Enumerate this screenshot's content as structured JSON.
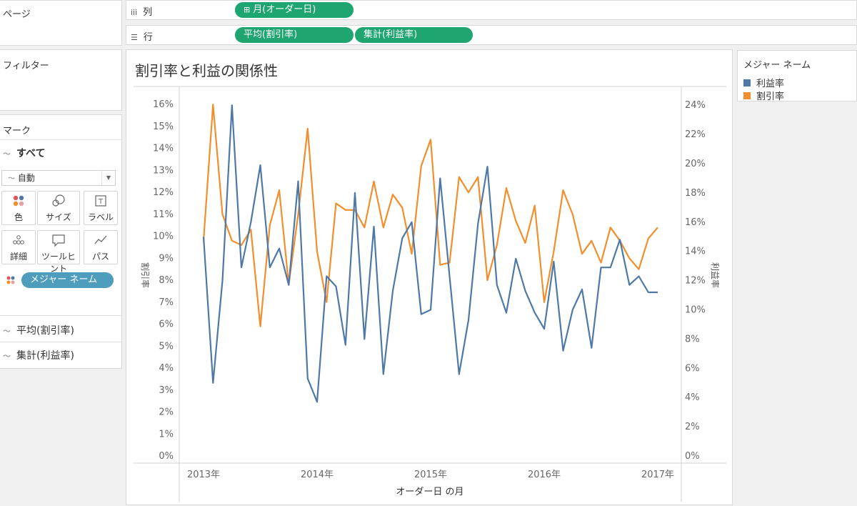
{
  "panels": {
    "pages_title": "ページ",
    "filters_title": "フィルター",
    "marks_title": "マーク"
  },
  "shelves": {
    "columns": {
      "label": "列",
      "icon": "columns-icon",
      "pills": [
        "月(オーダー日)"
      ],
      "pill_icon": "⊞"
    },
    "rows": {
      "label": "行",
      "icon": "rows-icon",
      "pills": [
        "平均(割引率)",
        "集計(利益率)"
      ]
    }
  },
  "marks": {
    "all_label": "すべて",
    "mark_type": "自動",
    "buttons": [
      {
        "label": "色",
        "icon": "color-icon"
      },
      {
        "label": "サイズ",
        "icon": "size-icon"
      },
      {
        "label": "ラベル",
        "icon": "label-icon"
      },
      {
        "label": "詳細",
        "icon": "detail-icon"
      },
      {
        "label": "ツールヒント",
        "icon": "tooltip-icon"
      },
      {
        "label": "パス",
        "icon": "path-icon"
      }
    ],
    "color_pill": "メジャー ネーム",
    "cards": [
      "平均(割引率)",
      "集計(利益率)"
    ]
  },
  "legend": {
    "title": "メジャー ネーム",
    "items": [
      {
        "label": "利益率",
        "color": "#4e79a7"
      },
      {
        "label": "割引率",
        "color": "#f28e2b"
      }
    ]
  },
  "chart_data": {
    "type": "line",
    "title": "割引率と利益の関係性",
    "xlabel": "オーダー日 の月",
    "ylabel_left": "割引率",
    "ylabel_right": "利益率",
    "x_ticks": [
      "2013年",
      "2014年",
      "2015年",
      "2016年",
      "2017年"
    ],
    "y_left_ticks": [
      "0%",
      "1%",
      "2%",
      "3%",
      "4%",
      "5%",
      "6%",
      "7%",
      "8%",
      "9%",
      "10%",
      "11%",
      "12%",
      "13%",
      "14%",
      "15%",
      "16%"
    ],
    "y_right_ticks": [
      "0%",
      "2%",
      "4%",
      "6%",
      "8%",
      "10%",
      "12%",
      "14%",
      "16%",
      "18%",
      "20%",
      "22%",
      "24%"
    ],
    "ylim_left": [
      0,
      0.163
    ],
    "ylim_right": [
      0,
      0.245
    ],
    "x": [
      "2013-01",
      "2013-02",
      "2013-03",
      "2013-04",
      "2013-05",
      "2013-06",
      "2013-07",
      "2013-08",
      "2013-09",
      "2013-10",
      "2013-11",
      "2013-12",
      "2014-01",
      "2014-02",
      "2014-03",
      "2014-04",
      "2014-05",
      "2014-06",
      "2014-07",
      "2014-08",
      "2014-09",
      "2014-10",
      "2014-11",
      "2014-12",
      "2015-01",
      "2015-02",
      "2015-03",
      "2015-04",
      "2015-05",
      "2015-06",
      "2015-07",
      "2015-08",
      "2015-09",
      "2015-10",
      "2015-11",
      "2015-12",
      "2016-01",
      "2016-02",
      "2016-03",
      "2016-04",
      "2016-05",
      "2016-06",
      "2016-07",
      "2016-08",
      "2016-09",
      "2016-10",
      "2016-11",
      "2016-12",
      "2017-01"
    ],
    "series": [
      {
        "name": "割引率",
        "axis": "left",
        "color": "#f28e2b",
        "values": [
          0.098,
          0.16,
          0.11,
          0.098,
          0.096,
          0.103,
          0.059,
          0.105,
          0.121,
          0.078,
          0.11,
          0.149,
          0.093,
          0.07,
          0.115,
          0.112,
          0.112,
          0.104,
          0.125,
          0.104,
          0.119,
          0.113,
          0.092,
          0.132,
          0.144,
          0.087,
          0.088,
          0.127,
          0.12,
          0.127,
          0.08,
          0.096,
          0.122,
          0.107,
          0.097,
          0.114,
          0.07,
          0.093,
          0.121,
          0.11,
          0.092,
          0.098,
          0.088,
          0.104,
          0.098,
          0.09,
          0.085,
          0.099,
          0.104
        ]
      },
      {
        "name": "利益率",
        "axis": "right",
        "color": "#4e79a7",
        "values": [
          0.15,
          0.05,
          0.12,
          0.24,
          0.129,
          0.16,
          0.199,
          0.129,
          0.142,
          0.117,
          0.188,
          0.053,
          0.037,
          0.123,
          0.116,
          0.076,
          0.18,
          0.08,
          0.157,
          0.056,
          0.113,
          0.149,
          0.16,
          0.097,
          0.1,
          0.19,
          0.123,
          0.056,
          0.093,
          0.159,
          0.198,
          0.117,
          0.098,
          0.135,
          0.113,
          0.098,
          0.087,
          0.133,
          0.072,
          0.1,
          0.114,
          0.074,
          0.129,
          0.129,
          0.148,
          0.117,
          0.123,
          0.112,
          0.112
        ]
      }
    ]
  }
}
